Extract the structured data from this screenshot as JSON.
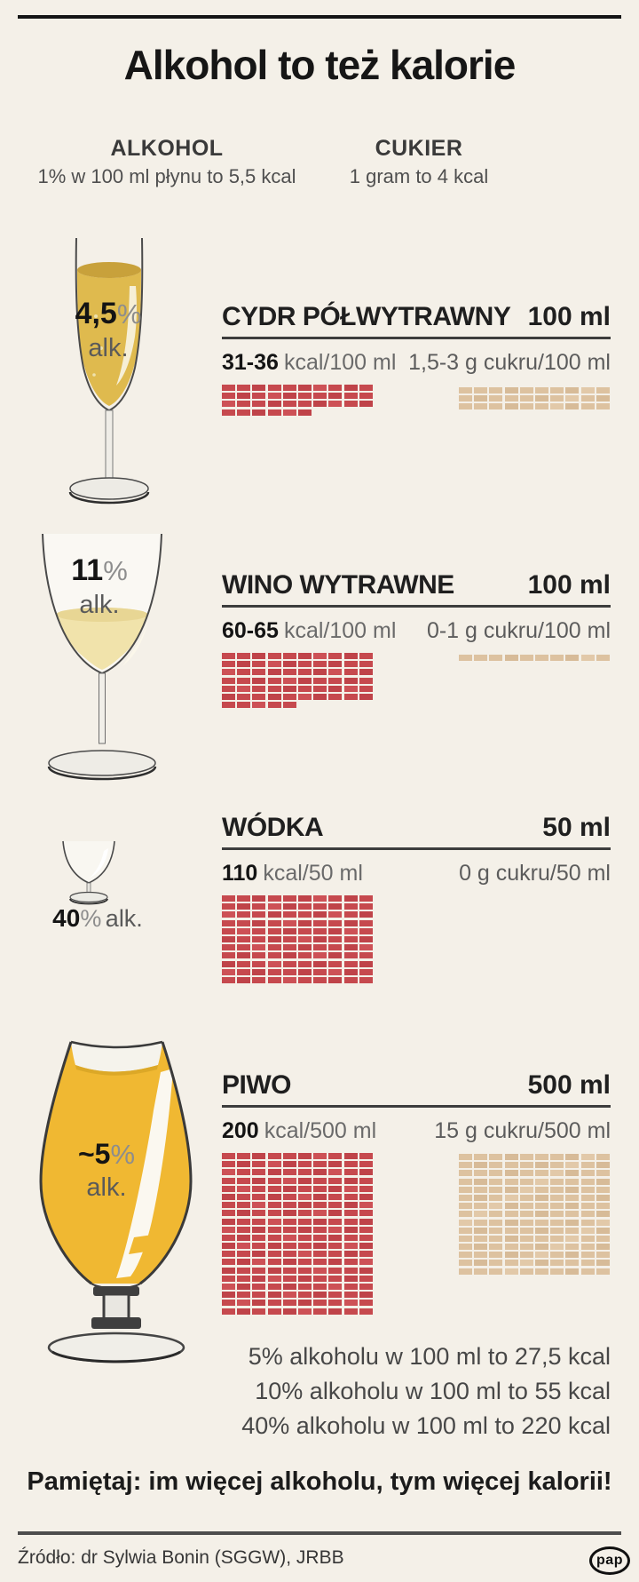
{
  "colors": {
    "background": "#f4f0e8",
    "kcal_square": "#c6494e",
    "sugar_square": "#ddc2a0",
    "rule": "#3d3d3d"
  },
  "header": {
    "title": "Alkohol to też kalorie"
  },
  "legend": {
    "alcohol_label": "ALKOHOL",
    "alcohol_desc": "1% w 100 ml płynu to 5,5 kcal",
    "sugar_label": "CUKIER",
    "sugar_desc": "1 gram to 4 kcal"
  },
  "sections": [
    {
      "glass_main": "4,5",
      "glass_pct": "%",
      "glass_sub": "alk.",
      "name": "CYDR PÓŁWYTRAWNY",
      "volume": "100 ml",
      "kcal_value": "31-36",
      "kcal_unit": "kcal/100 ml",
      "sugar_text": "1,5-3 g cukru/100 ml",
      "kcal_squares": 36,
      "sugar_squares": 30
    },
    {
      "glass_main": "11",
      "glass_pct": "%",
      "glass_sub": "alk.",
      "name": "WINO WYTRAWNE",
      "volume": "100 ml",
      "kcal_value": "60-65",
      "kcal_unit": "kcal/100 ml",
      "sugar_text": "0-1 g cukru/100 ml",
      "kcal_squares": 65,
      "sugar_squares": 10
    },
    {
      "glass_main": "40",
      "glass_pct": "%",
      "glass_sub": "alk.",
      "name": "WÓDKA",
      "volume": "50 ml",
      "kcal_value": "110",
      "kcal_unit": "kcal/50 ml",
      "sugar_text": "0 g cukru/50 ml",
      "kcal_squares": 110,
      "sugar_squares": 0
    },
    {
      "glass_main": "~5",
      "glass_pct": "%",
      "glass_sub": "alk.",
      "name": "PIWO",
      "volume": "500 ml",
      "kcal_value": "200",
      "kcal_unit": "kcal/500 ml",
      "sugar_text": "15 g cukru/500 ml",
      "kcal_squares": 200,
      "sugar_squares": 150
    }
  ],
  "footnotes": [
    "5% alkoholu w 100 ml to 27,5 kcal",
    "10% alkoholu w 100 ml to 55 kcal",
    "40% alkoholu w 100 ml to 220 kcal"
  ],
  "reminder": "Pamiętaj: im więcej alkoholu, tym więcej kalorii!",
  "footer": {
    "source": "Źródło: dr Sylwia Bonin (SGGW), JRBB",
    "logo": "pap"
  },
  "chart_data": {
    "type": "waffle",
    "title": "Alkohol to też kalorie",
    "legend": {
      "alcohol": "ALKOHOL: 1% w 100 ml płynu to 5,5 kcal",
      "sugar": "CUKIER: 1 gram to 4 kcal"
    },
    "square_units": {
      "kcal_grid": "1 square = 1 kcal",
      "sugar_grid": "1 square = 0,1 g cukru"
    },
    "grid_columns": 10,
    "items": [
      {
        "name": "Cydr półwytrawny",
        "alcohol_pct": "4,5%",
        "serving_ml": 100,
        "kcal": "31-36",
        "kcal_squares": 36,
        "sugar_g": "1,5-3",
        "sugar_squares": 30
      },
      {
        "name": "Wino wytrawne",
        "alcohol_pct": "11%",
        "serving_ml": 100,
        "kcal": "60-65",
        "kcal_squares": 65,
        "sugar_g": "0-1",
        "sugar_squares": 10
      },
      {
        "name": "Wódka",
        "alcohol_pct": "40%",
        "serving_ml": 50,
        "kcal": "110",
        "kcal_squares": 110,
        "sugar_g": "0",
        "sugar_squares": 0
      },
      {
        "name": "Piwo",
        "alcohol_pct": "~5%",
        "serving_ml": 500,
        "kcal": "200",
        "kcal_squares": 200,
        "sugar_g": "15",
        "sugar_squares": 150
      }
    ],
    "annotations": [
      "5% alkoholu w 100 ml to 27,5 kcal",
      "10% alkoholu w 100 ml to 55 kcal",
      "40% alkoholu w 100 ml to 220 kcal",
      "Pamiętaj: im więcej alkoholu, tym więcej kalorii!"
    ]
  }
}
